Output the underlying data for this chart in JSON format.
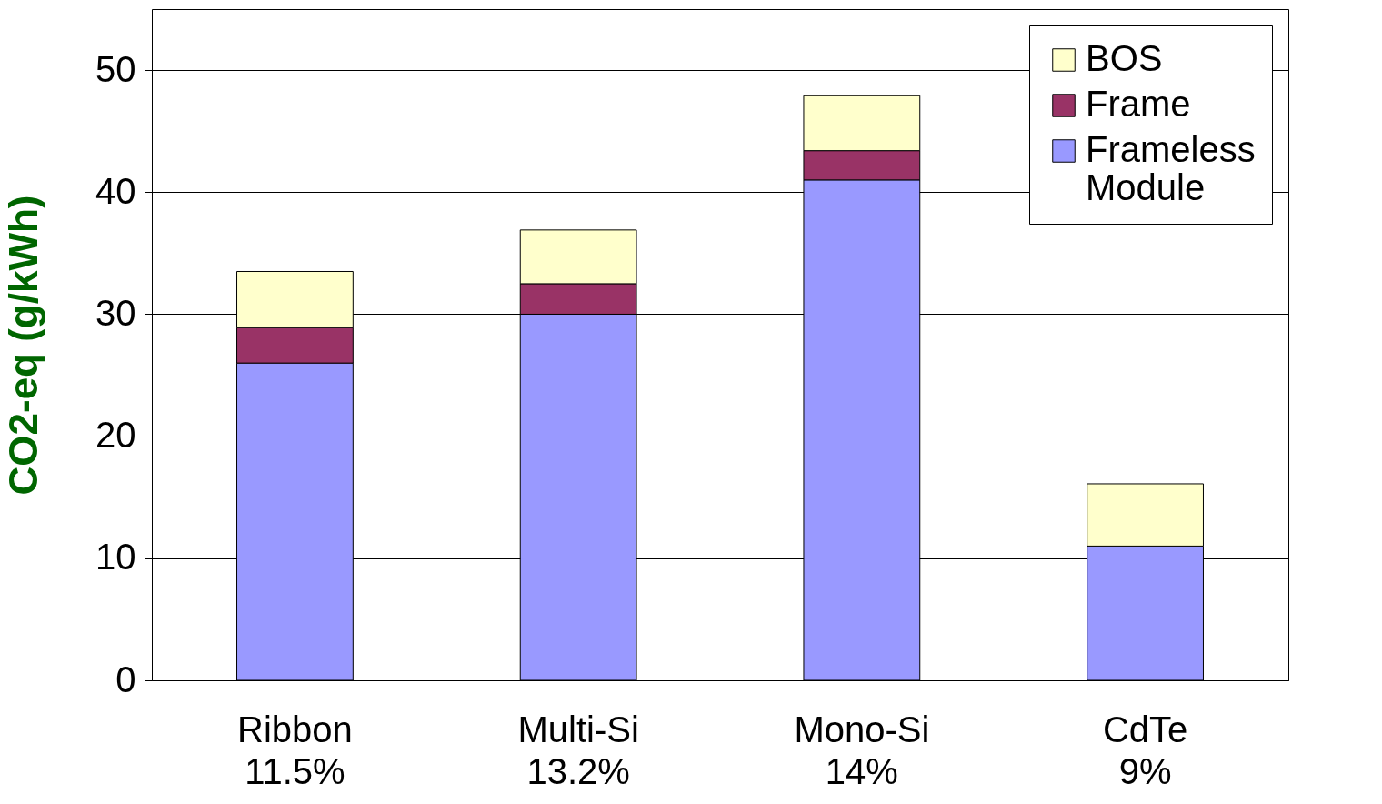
{
  "chart_data": {
    "type": "bar",
    "ylabel": "CO2-eq (g/kWh)",
    "categories": [
      "Ribbon\n11.5%",
      "Multi-Si\n13.2%",
      "Mono-Si\n14%",
      "CdTe\n9%"
    ],
    "stacked": true,
    "series": [
      {
        "name": "Frameless Module",
        "color": "#9999ff",
        "values": [
          26,
          30,
          41,
          11
        ]
      },
      {
        "name": "Frame",
        "color": "#993366",
        "values": [
          2.9,
          2.5,
          2.4,
          null
        ]
      },
      {
        "name": "BOS",
        "color": "#ffffcc",
        "values": [
          4.6,
          4.4,
          4.5,
          5.1
        ]
      }
    ],
    "ylim": [
      0,
      55
    ],
    "yticks": [
      0,
      10,
      20,
      30,
      40,
      50
    ],
    "grid": "y",
    "legend": "top right"
  }
}
